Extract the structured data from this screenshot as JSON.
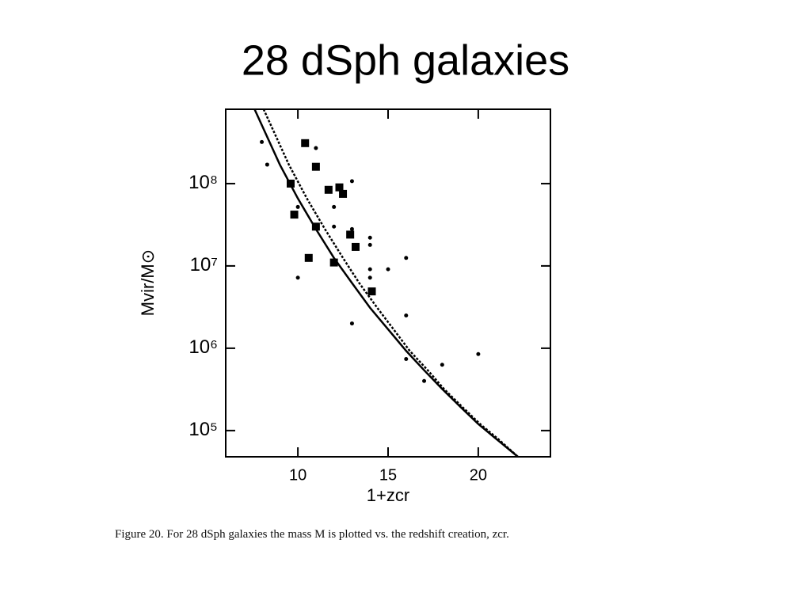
{
  "title": "28 dSph galaxies",
  "chart_data": {
    "type": "scatter",
    "x_label": "1+zcr",
    "y_label": "Mvir/M⊙",
    "xlim": [
      6,
      24
    ],
    "xticks": [
      10,
      15,
      20
    ],
    "ylim": [
      48000,
      800000000
    ],
    "y_scale": "log",
    "yticks": [
      {
        "value": 100000,
        "label": "10⁵"
      },
      {
        "value": 1000000,
        "label": "10⁶"
      },
      {
        "value": 10000000,
        "label": "10⁷"
      },
      {
        "value": 100000000,
        "label": "10⁸"
      }
    ],
    "series": [
      {
        "style": "line",
        "dash": false,
        "color": "#000000",
        "x": [
          7.6,
          9,
          10,
          11,
          12,
          13,
          14,
          15,
          16,
          17,
          18,
          19,
          20,
          21,
          22.2
        ],
        "values": [
          800000000,
          170000000,
          66000000,
          28000000,
          12500000,
          6200000,
          3100000,
          1700000,
          930000,
          540000,
          320000,
          195000,
          120000,
          79000,
          48000
        ]
      },
      {
        "style": "line",
        "dash": true,
        "color": "#000000",
        "x": [
          8.1,
          9.5,
          10.5,
          11.5,
          12.5,
          13.4,
          14.4,
          15.3,
          16.2,
          17.2,
          18.1,
          19.1,
          20.1,
          21.1,
          22.2
        ],
        "values": [
          800000000,
          170000000,
          66000000,
          28000000,
          12500000,
          6200000,
          3100000,
          1700000,
          930000,
          540000,
          320000,
          195000,
          120000,
          79000,
          48000
        ]
      },
      {
        "style": "square",
        "color": "#000000",
        "x": [
          10.4,
          11.0,
          9.6,
          9.8,
          11.0,
          10.6,
          11.7,
          12.3,
          12.5,
          12.0,
          12.9,
          13.2,
          14.1
        ],
        "values": [
          310000000,
          160000000,
          100000000,
          42000000,
          30000000,
          12500000,
          84000000,
          90000000,
          75000000,
          11000000,
          24000000,
          17000000,
          4900000
        ]
      },
      {
        "style": "star",
        "color": "#000000",
        "x": [
          8.0,
          8.3,
          11.0,
          13.0,
          10.0,
          12.0,
          10.0,
          12.0,
          13.0,
          14.0,
          14.0,
          13.0,
          14.0,
          14.0,
          15.0,
          16.0,
          16.0,
          16.0,
          17.0,
          18.0,
          20.0
        ],
        "values": [
          320000000,
          170000000,
          270000000,
          107000000,
          52000000,
          52000000,
          7200000,
          30000000,
          28000000,
          22000000,
          18000000,
          2000000,
          9100000,
          7200000,
          9100000,
          12500000,
          2500000,
          740000,
          400000,
          630000,
          850000
        ]
      }
    ]
  },
  "caption": "Figure 20. For 28 dSph galaxies the mass M is plotted vs. the redshift creation, zcr."
}
